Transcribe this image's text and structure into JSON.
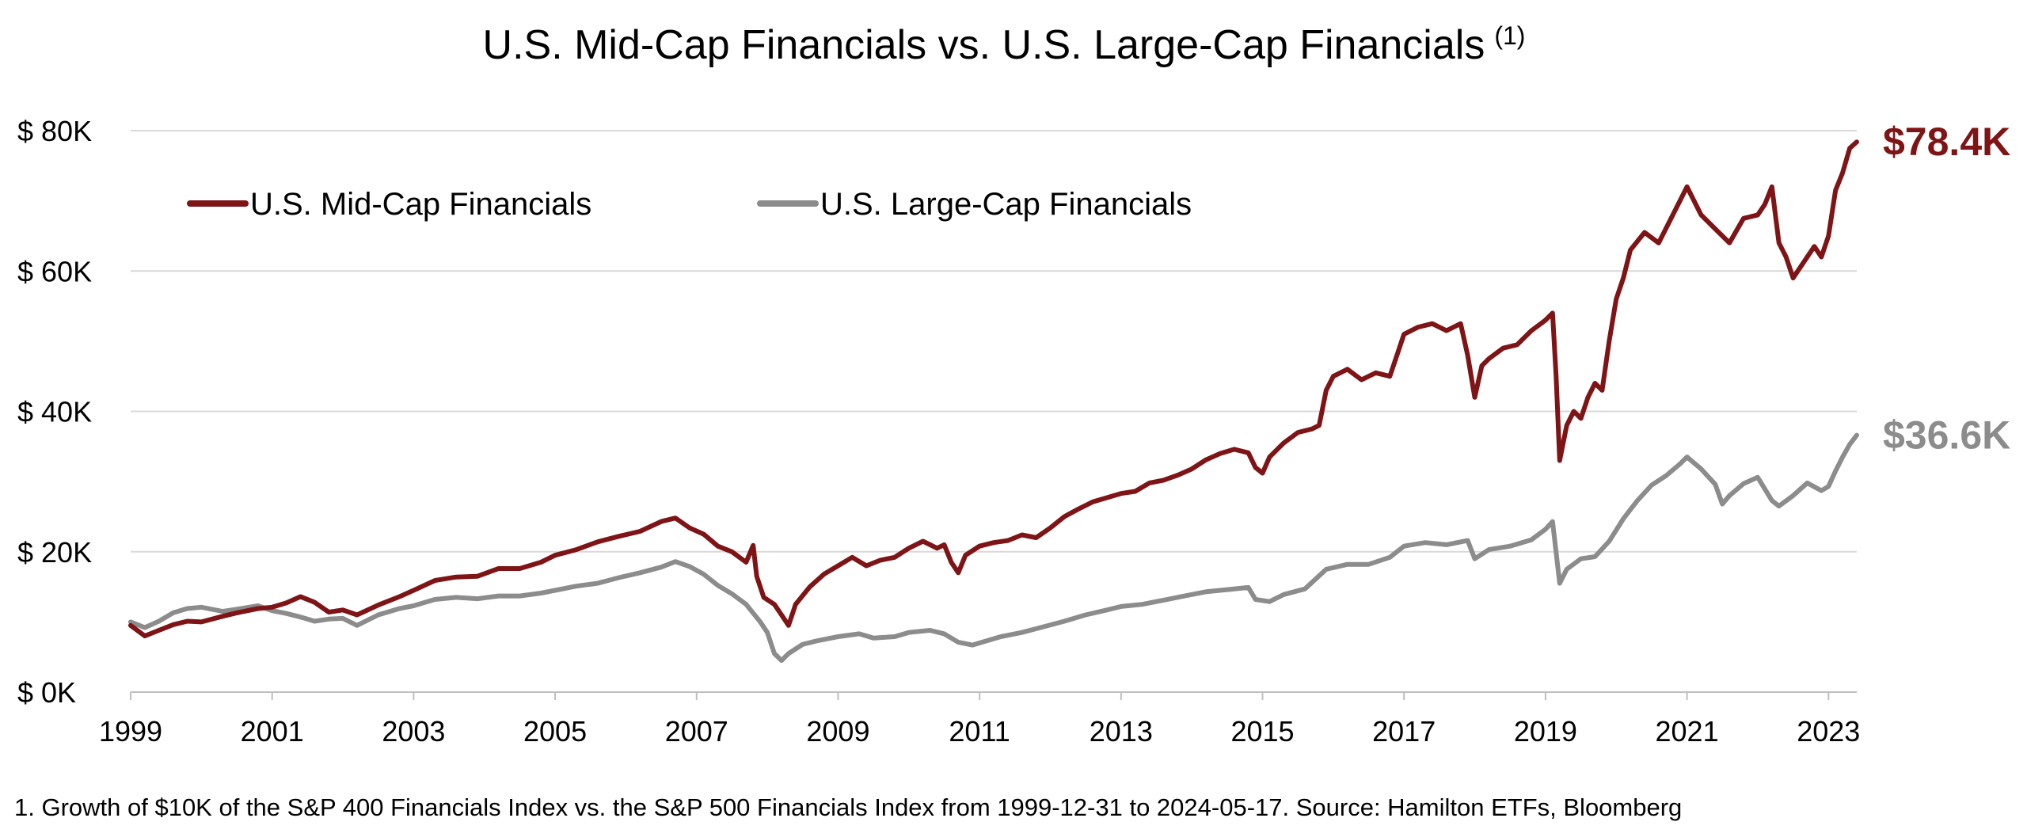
{
  "chart_data": {
    "type": "line",
    "title": "U.S. Mid-Cap Financials vs. U.S. Large-Cap Financials",
    "title_superscript": "(1)",
    "xlabel": "",
    "ylabel": "",
    "xlim": [
      1999.0,
      2023.4
    ],
    "ylim": [
      0,
      80000
    ],
    "grid": true,
    "legend_placement": "top-left",
    "y_ticks": [
      {
        "value": 0,
        "label": "$ 0K"
      },
      {
        "value": 20000,
        "label": "$ 20K"
      },
      {
        "value": 40000,
        "label": "$ 40K"
      },
      {
        "value": 60000,
        "label": "$ 60K"
      },
      {
        "value": 80000,
        "label": "$ 80K"
      }
    ],
    "x_ticks": [
      {
        "value": 1999,
        "label": "1999"
      },
      {
        "value": 2001,
        "label": "2001"
      },
      {
        "value": 2003,
        "label": "2003"
      },
      {
        "value": 2005,
        "label": "2005"
      },
      {
        "value": 2007,
        "label": "2007"
      },
      {
        "value": 2009,
        "label": "2009"
      },
      {
        "value": 2011,
        "label": "2011"
      },
      {
        "value": 2013,
        "label": "2013"
      },
      {
        "value": 2015,
        "label": "2015"
      },
      {
        "value": 2017,
        "label": "2017"
      },
      {
        "value": 2019,
        "label": "2019"
      },
      {
        "value": 2021,
        "label": "2021"
      },
      {
        "value": 2023,
        "label": "2023"
      }
    ],
    "series": [
      {
        "name": "U.S. Mid-Cap Financials",
        "color": "#7f1416",
        "end_label": "$78.4K",
        "points": [
          [
            1999.0,
            9500
          ],
          [
            1999.2,
            8000
          ],
          [
            1999.4,
            8800
          ],
          [
            1999.6,
            9600
          ],
          [
            1999.8,
            10100
          ],
          [
            2000.0,
            10000
          ],
          [
            2000.3,
            10800
          ],
          [
            2000.5,
            11300
          ],
          [
            2000.8,
            11900
          ],
          [
            2001.0,
            12100
          ],
          [
            2001.2,
            12700
          ],
          [
            2001.4,
            13600
          ],
          [
            2001.6,
            12800
          ],
          [
            2001.8,
            11400
          ],
          [
            2002.0,
            11700
          ],
          [
            2002.2,
            11000
          ],
          [
            2002.5,
            12400
          ],
          [
            2002.8,
            13600
          ],
          [
            2003.0,
            14500
          ],
          [
            2003.3,
            15900
          ],
          [
            2003.6,
            16400
          ],
          [
            2003.9,
            16500
          ],
          [
            2004.2,
            17600
          ],
          [
            2004.5,
            17600
          ],
          [
            2004.8,
            18500
          ],
          [
            2005.0,
            19500
          ],
          [
            2005.3,
            20300
          ],
          [
            2005.6,
            21400
          ],
          [
            2005.9,
            22200
          ],
          [
            2006.2,
            22900
          ],
          [
            2006.5,
            24300
          ],
          [
            2006.7,
            24800
          ],
          [
            2006.9,
            23400
          ],
          [
            2007.1,
            22500
          ],
          [
            2007.3,
            20800
          ],
          [
            2007.5,
            20000
          ],
          [
            2007.7,
            18500
          ],
          [
            2007.8,
            20900
          ],
          [
            2007.85,
            16500
          ],
          [
            2007.95,
            13500
          ],
          [
            2008.1,
            12500
          ],
          [
            2008.2,
            11000
          ],
          [
            2008.3,
            9500
          ],
          [
            2008.4,
            12500
          ],
          [
            2008.6,
            15000
          ],
          [
            2008.8,
            16800
          ],
          [
            2009.0,
            18000
          ],
          [
            2009.2,
            19200
          ],
          [
            2009.4,
            18000
          ],
          [
            2009.6,
            18800
          ],
          [
            2009.8,
            19200
          ],
          [
            2010.0,
            20500
          ],
          [
            2010.2,
            21500
          ],
          [
            2010.4,
            20500
          ],
          [
            2010.5,
            21000
          ],
          [
            2010.6,
            18500
          ],
          [
            2010.7,
            17000
          ],
          [
            2010.8,
            19500
          ],
          [
            2011.0,
            20800
          ],
          [
            2011.2,
            21300
          ],
          [
            2011.4,
            21600
          ],
          [
            2011.6,
            22400
          ],
          [
            2011.8,
            22000
          ],
          [
            2012.0,
            23400
          ],
          [
            2012.2,
            25000
          ],
          [
            2012.4,
            26100
          ],
          [
            2012.6,
            27100
          ],
          [
            2012.8,
            27700
          ],
          [
            2013.0,
            28300
          ],
          [
            2013.2,
            28600
          ],
          [
            2013.4,
            29800
          ],
          [
            2013.6,
            30200
          ],
          [
            2013.8,
            30900
          ],
          [
            2014.0,
            31800
          ],
          [
            2014.2,
            33100
          ],
          [
            2014.4,
            34000
          ],
          [
            2014.6,
            34600
          ],
          [
            2014.8,
            34100
          ],
          [
            2014.9,
            32000
          ],
          [
            2015.0,
            31200
          ],
          [
            2015.1,
            33500
          ],
          [
            2015.3,
            35500
          ],
          [
            2015.5,
            37000
          ],
          [
            2015.7,
            37500
          ],
          [
            2015.8,
            38000
          ],
          [
            2015.9,
            43000
          ],
          [
            2016.0,
            45000
          ],
          [
            2016.2,
            46000
          ],
          [
            2016.4,
            44500
          ],
          [
            2016.6,
            45500
          ],
          [
            2016.8,
            45000
          ],
          [
            2016.9,
            48000
          ],
          [
            2017.0,
            51000
          ],
          [
            2017.2,
            52000
          ],
          [
            2017.4,
            52500
          ],
          [
            2017.6,
            51500
          ],
          [
            2017.8,
            52500
          ],
          [
            2017.9,
            48000
          ],
          [
            2018.0,
            42000
          ],
          [
            2018.1,
            46500
          ],
          [
            2018.2,
            47500
          ],
          [
            2018.4,
            49000
          ],
          [
            2018.6,
            49500
          ],
          [
            2018.8,
            51500
          ],
          [
            2019.0,
            53000
          ],
          [
            2019.1,
            54000
          ],
          [
            2019.15,
            45000
          ],
          [
            2019.2,
            33000
          ],
          [
            2019.3,
            38000
          ],
          [
            2019.4,
            40000
          ],
          [
            2019.5,
            39000
          ],
          [
            2019.6,
            42000
          ],
          [
            2019.7,
            44000
          ],
          [
            2019.8,
            43000
          ],
          [
            2019.9,
            50000
          ],
          [
            2020.0,
            56000
          ],
          [
            2020.1,
            59000
          ],
          [
            2020.2,
            63000
          ],
          [
            2020.4,
            65500
          ],
          [
            2020.6,
            64000
          ],
          [
            2020.8,
            68000
          ],
          [
            2021.0,
            72000
          ],
          [
            2021.2,
            68000
          ],
          [
            2021.4,
            66000
          ],
          [
            2021.6,
            64000
          ],
          [
            2021.8,
            67500
          ],
          [
            2022.0,
            68000
          ],
          [
            2022.1,
            69500
          ],
          [
            2022.2,
            72000
          ],
          [
            2022.3,
            64000
          ],
          [
            2022.4,
            62000
          ],
          [
            2022.5,
            59000
          ],
          [
            2022.6,
            60500
          ],
          [
            2022.8,
            63500
          ],
          [
            2022.9,
            62000
          ],
          [
            2023.0,
            65000
          ],
          [
            2023.1,
            71500
          ],
          [
            2023.2,
            74000
          ],
          [
            2023.3,
            77500
          ],
          [
            2023.4,
            78400
          ]
        ]
      },
      {
        "name": "U.S. Large-Cap Financials",
        "color": "#8c8c8c",
        "end_label": "$36.6K",
        "points": [
          [
            1999.0,
            10000
          ],
          [
            1999.2,
            9200
          ],
          [
            1999.4,
            10100
          ],
          [
            1999.6,
            11300
          ],
          [
            1999.8,
            11900
          ],
          [
            2000.0,
            12100
          ],
          [
            2000.3,
            11500
          ],
          [
            2000.5,
            11800
          ],
          [
            2000.8,
            12300
          ],
          [
            2001.0,
            11600
          ],
          [
            2001.2,
            11200
          ],
          [
            2001.4,
            10700
          ],
          [
            2001.6,
            10100
          ],
          [
            2001.8,
            10400
          ],
          [
            2002.0,
            10500
          ],
          [
            2002.2,
            9500
          ],
          [
            2002.5,
            11000
          ],
          [
            2002.8,
            11900
          ],
          [
            2003.0,
            12300
          ],
          [
            2003.3,
            13200
          ],
          [
            2003.6,
            13500
          ],
          [
            2003.9,
            13300
          ],
          [
            2004.2,
            13700
          ],
          [
            2004.5,
            13700
          ],
          [
            2004.8,
            14100
          ],
          [
            2005.0,
            14500
          ],
          [
            2005.3,
            15100
          ],
          [
            2005.6,
            15500
          ],
          [
            2005.9,
            16300
          ],
          [
            2006.2,
            17000
          ],
          [
            2006.5,
            17800
          ],
          [
            2006.7,
            18600
          ],
          [
            2006.9,
            17900
          ],
          [
            2007.1,
            16800
          ],
          [
            2007.3,
            15200
          ],
          [
            2007.5,
            14000
          ],
          [
            2007.7,
            12500
          ],
          [
            2007.9,
            10000
          ],
          [
            2008.0,
            8500
          ],
          [
            2008.1,
            5500
          ],
          [
            2008.2,
            4500
          ],
          [
            2008.3,
            5500
          ],
          [
            2008.5,
            6800
          ],
          [
            2008.7,
            7300
          ],
          [
            2009.0,
            7900
          ],
          [
            2009.3,
            8300
          ],
          [
            2009.5,
            7700
          ],
          [
            2009.8,
            7900
          ],
          [
            2010.0,
            8500
          ],
          [
            2010.3,
            8800
          ],
          [
            2010.5,
            8300
          ],
          [
            2010.7,
            7100
          ],
          [
            2010.9,
            6700
          ],
          [
            2011.1,
            7300
          ],
          [
            2011.3,
            7900
          ],
          [
            2011.6,
            8500
          ],
          [
            2011.9,
            9300
          ],
          [
            2012.2,
            10100
          ],
          [
            2012.5,
            11000
          ],
          [
            2012.8,
            11700
          ],
          [
            2013.0,
            12200
          ],
          [
            2013.3,
            12500
          ],
          [
            2013.6,
            13100
          ],
          [
            2013.9,
            13700
          ],
          [
            2014.2,
            14300
          ],
          [
            2014.5,
            14600
          ],
          [
            2014.8,
            14900
          ],
          [
            2014.9,
            13200
          ],
          [
            2015.1,
            12900
          ],
          [
            2015.3,
            13900
          ],
          [
            2015.6,
            14700
          ],
          [
            2015.9,
            17500
          ],
          [
            2016.2,
            18200
          ],
          [
            2016.5,
            18200
          ],
          [
            2016.8,
            19200
          ],
          [
            2017.0,
            20800
          ],
          [
            2017.3,
            21300
          ],
          [
            2017.6,
            21000
          ],
          [
            2017.9,
            21600
          ],
          [
            2018.0,
            19000
          ],
          [
            2018.2,
            20300
          ],
          [
            2018.5,
            20800
          ],
          [
            2018.8,
            21700
          ],
          [
            2019.0,
            23200
          ],
          [
            2019.1,
            24300
          ],
          [
            2019.2,
            15500
          ],
          [
            2019.3,
            17500
          ],
          [
            2019.5,
            19000
          ],
          [
            2019.7,
            19300
          ],
          [
            2019.9,
            21500
          ],
          [
            2020.1,
            24700
          ],
          [
            2020.3,
            27300
          ],
          [
            2020.5,
            29500
          ],
          [
            2020.7,
            30800
          ],
          [
            2020.9,
            32500
          ],
          [
            2021.0,
            33500
          ],
          [
            2021.2,
            31800
          ],
          [
            2021.4,
            29600
          ],
          [
            2021.5,
            26800
          ],
          [
            2021.6,
            28000
          ],
          [
            2021.8,
            29700
          ],
          [
            2022.0,
            30600
          ],
          [
            2022.2,
            27300
          ],
          [
            2022.3,
            26500
          ],
          [
            2022.5,
            28000
          ],
          [
            2022.7,
            29800
          ],
          [
            2022.9,
            28700
          ],
          [
            2023.0,
            29300
          ],
          [
            2023.1,
            31500
          ],
          [
            2023.2,
            33500
          ],
          [
            2023.3,
            35300
          ],
          [
            2023.4,
            36600
          ]
        ]
      }
    ],
    "footnote": "1. Growth of $10K of the S&P 400 Financials Index vs. the S&P 500 Financials Index from 1999-12-31 to 2024-05-17. Source: Hamilton ETFs, Bloomberg"
  }
}
